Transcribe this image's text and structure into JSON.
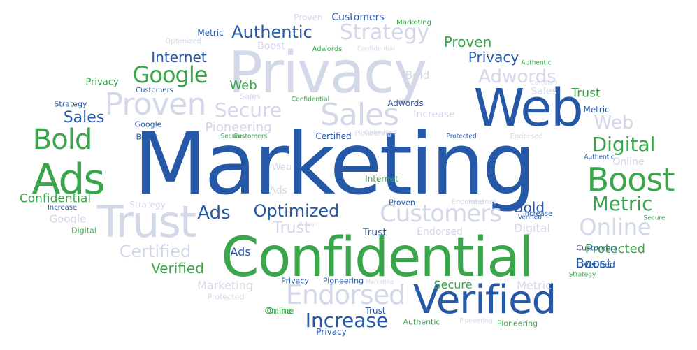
{
  "colors": {
    "blue": "#2558a6",
    "green": "#3aa54a",
    "light": "#d3d8e8"
  },
  "words": [
    {
      "text": "Marketing",
      "color": "blue"
    },
    {
      "text": "Confidential",
      "color": "green"
    },
    {
      "text": "Privacy",
      "color": "light"
    },
    {
      "text": "Web",
      "color": "blue"
    },
    {
      "text": "Verified",
      "color": "blue"
    },
    {
      "text": "Trust",
      "color": "light"
    },
    {
      "text": "Ads",
      "color": "green"
    },
    {
      "text": "Boost",
      "color": "green"
    },
    {
      "text": "Sales",
      "color": "light"
    },
    {
      "text": "Proven",
      "color": "light"
    },
    {
      "text": "Endorsed",
      "color": "light"
    },
    {
      "text": "Bold",
      "color": "green"
    },
    {
      "text": "Customers",
      "color": "light"
    },
    {
      "text": "Secure",
      "color": "light"
    },
    {
      "text": "Strategy",
      "color": "light"
    },
    {
      "text": "Online",
      "color": "light"
    },
    {
      "text": "Google",
      "color": "green"
    },
    {
      "text": "Increase",
      "color": "blue"
    },
    {
      "text": "Adwords",
      "color": "light"
    },
    {
      "text": "Digital",
      "color": "green"
    },
    {
      "text": "Metric",
      "color": "green"
    },
    {
      "text": "Optimized",
      "color": "blue"
    },
    {
      "text": "Certified",
      "color": "light"
    },
    {
      "text": "Authentic",
      "color": "blue"
    },
    {
      "text": "Pioneering",
      "color": "light"
    },
    {
      "text": "Web",
      "color": "light"
    },
    {
      "text": "Internet",
      "color": "blue"
    },
    {
      "text": "Protected",
      "color": "green"
    },
    {
      "text": "Proven",
      "color": "green"
    },
    {
      "text": "Sales",
      "color": "blue"
    },
    {
      "text": "Ads",
      "color": "blue"
    },
    {
      "text": "Privacy",
      "color": "blue"
    },
    {
      "text": "Verified",
      "color": "green"
    },
    {
      "text": "Confidential",
      "color": "green"
    },
    {
      "text": "Bold",
      "color": "blue"
    },
    {
      "text": "Trust",
      "color": "light"
    },
    {
      "text": "Boost",
      "color": "blue"
    },
    {
      "text": "Digital",
      "color": "light"
    },
    {
      "text": "Marketing",
      "color": "light"
    },
    {
      "text": "Metric",
      "color": "light"
    },
    {
      "text": "Trust",
      "color": "green"
    },
    {
      "text": "Secure",
      "color": "green"
    },
    {
      "text": "Ads",
      "color": "blue"
    },
    {
      "text": "Web",
      "color": "green"
    },
    {
      "text": "Bold",
      "color": "light"
    },
    {
      "text": "Google",
      "color": "light"
    },
    {
      "text": "Trust",
      "color": "blue"
    },
    {
      "text": "Strategy",
      "color": "light"
    },
    {
      "text": "Verified",
      "color": "blue"
    },
    {
      "text": "Ads",
      "color": "light"
    },
    {
      "text": "Increase",
      "color": "light"
    },
    {
      "text": "Pioneering",
      "color": "light"
    },
    {
      "text": "Endorsed",
      "color": "light"
    },
    {
      "text": "Internet",
      "color": "green"
    },
    {
      "text": "Metric",
      "color": "blue"
    },
    {
      "text": "Privacy",
      "color": "green"
    },
    {
      "text": "Customers",
      "color": "blue"
    },
    {
      "text": "Adwords",
      "color": "blue"
    },
    {
      "text": "Certified",
      "color": "blue"
    },
    {
      "text": "Google",
      "color": "blue"
    },
    {
      "text": "Boost",
      "color": "blue"
    },
    {
      "text": "Proven",
      "color": "light"
    },
    {
      "text": "Proven",
      "color": "blue"
    },
    {
      "text": "Customers",
      "color": "blue"
    },
    {
      "text": "Marketing",
      "color": "green"
    },
    {
      "text": "Privacy",
      "color": "blue"
    },
    {
      "text": "Pioneering",
      "color": "blue"
    },
    {
      "text": "Online",
      "color": "light"
    },
    {
      "text": "Sales",
      "color": "light"
    },
    {
      "text": "Strategy",
      "color": "blue"
    },
    {
      "text": "Customers",
      "color": "blue"
    },
    {
      "text": "Optimized",
      "color": "light"
    },
    {
      "text": "Secure",
      "color": "green"
    },
    {
      "text": "Adwords",
      "color": "green"
    },
    {
      "text": "Confidential",
      "color": "light"
    },
    {
      "text": "Boost",
      "color": "light"
    },
    {
      "text": "Metric",
      "color": "blue"
    },
    {
      "text": "Verified",
      "color": "blue"
    },
    {
      "text": "Certified",
      "color": "light"
    },
    {
      "text": "Web",
      "color": "light"
    },
    {
      "text": "Customers",
      "color": "green"
    },
    {
      "text": "Optimized",
      "color": "light"
    },
    {
      "text": "Protected",
      "color": "blue"
    },
    {
      "text": "Authentic",
      "color": "blue"
    },
    {
      "text": "Endorsed",
      "color": "light"
    },
    {
      "text": "Increase",
      "color": "blue"
    },
    {
      "text": "Digital",
      "color": "green"
    },
    {
      "text": "Confidential",
      "color": "green"
    },
    {
      "text": "Protected",
      "color": "light"
    },
    {
      "text": "Online",
      "color": "green"
    },
    {
      "text": "Authentic",
      "color": "green"
    },
    {
      "text": "Pioneering",
      "color": "light"
    },
    {
      "text": "Pioneering",
      "color": "green"
    },
    {
      "text": "Endorsed",
      "color": "light"
    },
    {
      "text": "Internet",
      "color": "light"
    },
    {
      "text": "Increase",
      "color": "blue"
    },
    {
      "text": "Secure",
      "color": "green"
    },
    {
      "text": "Strategy",
      "color": "green"
    },
    {
      "text": "Authentic",
      "color": "green"
    },
    {
      "text": "Trust",
      "color": "blue"
    },
    {
      "text": "Privacy",
      "color": "blue"
    },
    {
      "text": "Marketing",
      "color": "light"
    },
    {
      "text": "Sales",
      "color": "light"
    },
    {
      "text": "Online",
      "color": "green"
    },
    {
      "text": "Proven",
      "color": "light"
    }
  ]
}
